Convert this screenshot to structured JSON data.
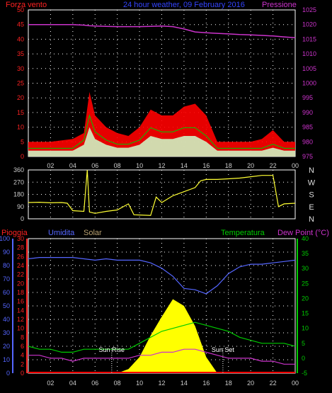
{
  "header": {
    "left_label": "Forza vento",
    "center_label": "24 hour weather, 09 February 2016",
    "right_label": "Pressione"
  },
  "compass": [
    "N",
    "W",
    "S",
    "E",
    "N"
  ],
  "legend_bottom": {
    "pioggia": "Pioggia",
    "umidita": "Umidita",
    "solar": "Solar",
    "temperatura": "Temperatura",
    "dewpoint": "Dew Point (°C)"
  },
  "sun_labels": {
    "rise": "Sun Rise",
    "set": "Sun Set"
  },
  "colors": {
    "wind": "#ff0000",
    "gust": "#00cc00",
    "windfill": "#ccffcc",
    "pressure": "#cc33cc",
    "direction": "#ffff33",
    "humidity": "#5566ff",
    "solar": "#ffff00",
    "temperature": "#00cc00",
    "dewpoint": "#cc33cc",
    "rain": "#ff0000",
    "grid": "#ffffff"
  },
  "chart_data": [
    {
      "type": "line",
      "name": "wind-pressure",
      "title": "24 hour weather, 09 February 2016",
      "xlabel": "",
      "ylabel": "Forza vento",
      "y2label": "Pressione",
      "x_ticks": [
        "02",
        "04",
        "06",
        "08",
        "10",
        "12",
        "14",
        "16",
        "18",
        "20",
        "22",
        "00"
      ],
      "ylim": [
        0,
        50
      ],
      "y_ticks": [
        0,
        5,
        10,
        15,
        20,
        25,
        30,
        35,
        40,
        45,
        50
      ],
      "y2lim": [
        975,
        1025
      ],
      "y2_ticks": [
        975,
        980,
        985,
        990,
        995,
        1000,
        1005,
        1010,
        1015,
        1020,
        1025
      ],
      "x": [
        0,
        2,
        4,
        5,
        5.5,
        6,
        7,
        8,
        9,
        10,
        11,
        12,
        13,
        14,
        15,
        16,
        17,
        18,
        19,
        20,
        21,
        22,
        23,
        24
      ],
      "wind_max": [
        5,
        5,
        6,
        8,
        22,
        14,
        10,
        8,
        7,
        10,
        16,
        14,
        14,
        17,
        18,
        14,
        5,
        5,
        5,
        5,
        6,
        9,
        5,
        5
      ],
      "wind_avg": [
        2,
        2,
        2,
        4,
        10,
        6,
        4,
        3,
        3,
        4,
        7,
        6,
        6,
        7,
        7,
        5,
        2,
        2,
        2,
        2,
        2,
        3,
        2,
        2
      ],
      "pressure": [
        1020,
        1020,
        1020,
        1019.8,
        1019.6,
        1019.5,
        1019.4,
        1019.3,
        1019.3,
        1019.3,
        1019.4,
        1019.5,
        1019.3,
        1018.5,
        1017.5,
        1017.2,
        1017.0,
        1016.8,
        1016.6,
        1016.5,
        1016.3,
        1016.1,
        1015.8,
        1015.5
      ],
      "grid": true
    },
    {
      "type": "line",
      "name": "wind-direction",
      "y_ticks": [
        0,
        90,
        180,
        270,
        360
      ],
      "ylim": [
        0,
        360
      ],
      "x": [
        0,
        1,
        2,
        3,
        3.5,
        4,
        5,
        5.3,
        5.5,
        6,
        7,
        8,
        9,
        9.5,
        10,
        11,
        11.5,
        12,
        13,
        14,
        15,
        15.5,
        16,
        17,
        18,
        19,
        20,
        21,
        22,
        22.5,
        23,
        24
      ],
      "values": [
        120,
        122,
        118,
        120,
        115,
        60,
        55,
        360,
        50,
        40,
        55,
        65,
        110,
        30,
        28,
        25,
        160,
        120,
        170,
        200,
        230,
        280,
        290,
        290,
        295,
        300,
        310,
        320,
        320,
        90,
        110,
        115
      ],
      "grid": true
    },
    {
      "type": "line",
      "name": "humidity-temp-solar",
      "x_ticks": [
        "02",
        "04",
        "06",
        "08",
        "10",
        "12",
        "14",
        "16",
        "18",
        "20",
        "22",
        "00"
      ],
      "humidity_ticks": [
        0,
        10,
        20,
        30,
        40,
        50,
        60,
        70,
        80,
        90,
        100
      ],
      "ylim_humidity": [
        0,
        100
      ],
      "rain_ticks": [
        0,
        2,
        4,
        6,
        8,
        10,
        12,
        14,
        16,
        18,
        20,
        22,
        24,
        26,
        28,
        30
      ],
      "ylim_rain": [
        0,
        30
      ],
      "temp_ticks": [
        -5,
        0,
        5,
        10,
        15,
        20,
        25,
        30,
        35,
        40
      ],
      "ylim_temp": [
        -5,
        40
      ],
      "x": [
        0,
        1,
        2,
        3,
        4,
        5,
        6,
        7,
        8,
        9,
        10,
        11,
        12,
        13,
        14,
        15,
        16,
        17,
        18,
        19,
        20,
        21,
        22,
        23,
        24
      ],
      "humidity": [
        85,
        86,
        86,
        86,
        86,
        85,
        84,
        85,
        84,
        84,
        84,
        82,
        78,
        72,
        63,
        62,
        59,
        65,
        74,
        79,
        81,
        81,
        82,
        83,
        84
      ],
      "temperature": [
        4,
        3,
        3,
        2,
        2,
        3,
        3,
        3,
        3,
        3,
        5,
        7,
        9,
        10,
        11,
        12,
        11,
        10,
        9,
        7,
        6,
        5,
        5,
        5,
        4
      ],
      "dewpoint": [
        1,
        1,
        0,
        0,
        -1,
        0,
        0,
        0,
        0,
        0,
        1,
        1,
        2,
        2,
        3,
        3,
        2,
        1,
        0,
        0,
        0,
        -1,
        -1,
        -2,
        -2
      ],
      "solar_pct": [
        0,
        0,
        0,
        0,
        0,
        0,
        0,
        0,
        0,
        3,
        12,
        28,
        42,
        55,
        50,
        35,
        12,
        0,
        0,
        0,
        0,
        0,
        0,
        0,
        0
      ],
      "rain": [
        0,
        0,
        0,
        0,
        0,
        0,
        0,
        0,
        0,
        0,
        0,
        0,
        0,
        0,
        0,
        0,
        0,
        0,
        0,
        0,
        0,
        0,
        0,
        0,
        0
      ],
      "sun_rise_x": 7.5,
      "sun_set_x": 17.5,
      "grid": true
    }
  ]
}
